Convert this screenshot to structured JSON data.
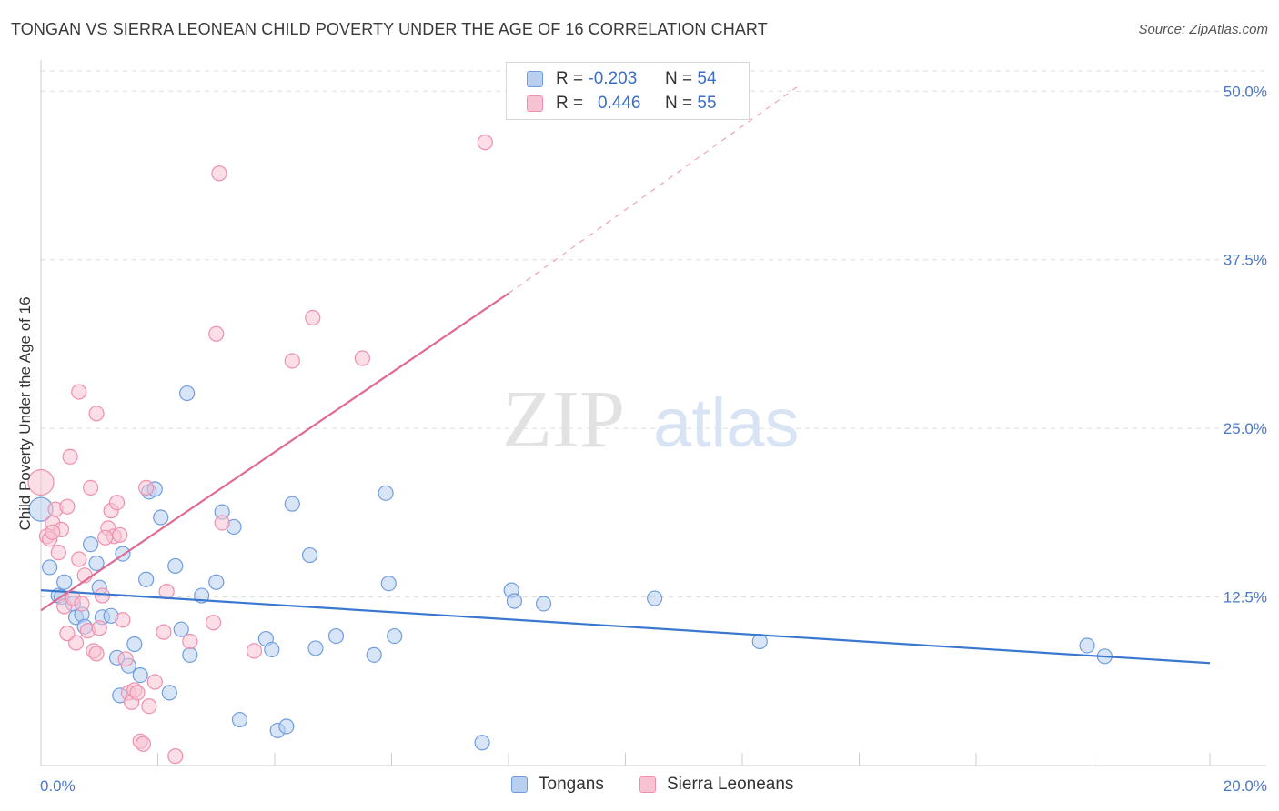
{
  "title": "TONGAN VS SIERRA LEONEAN CHILD POVERTY UNDER THE AGE OF 16 CORRELATION CHART",
  "source": "Source: ZipAtlas.com",
  "watermark": {
    "zip": "ZIP",
    "atlas": "atlas"
  },
  "legend": {
    "rows": [
      {
        "r_label": "R =",
        "r_value": "-0.203",
        "n_label": "N =",
        "n_value": "54"
      },
      {
        "r_label": "R =",
        "r_value": "0.446",
        "n_label": "N =",
        "n_value": "55"
      }
    ]
  },
  "bottom_legend": {
    "tongans": "Tongans",
    "sierra": "Sierra Leoneans"
  },
  "colors": {
    "tongan_fill": "#b8cff0",
    "tongan_stroke": "#6f9de0",
    "tongan_line": "#3a78d0",
    "sierra_fill": "#f7c3d2",
    "sierra_stroke": "#ef8fae",
    "sierra_line": "#e06a93",
    "grid": "#dddddd",
    "tick": "#4a78c8"
  },
  "chart_data": {
    "type": "scatter",
    "ylabel": "Child Poverty Under the Age of 16",
    "x_ticks": [
      "0.0%",
      "20.0%"
    ],
    "y_ticks": [
      "12.5%",
      "25.0%",
      "37.5%",
      "50.0%"
    ],
    "xlim": [
      0,
      20
    ],
    "ylim": [
      0,
      51.5
    ],
    "series": [
      {
        "name": "Tongans",
        "r": -0.203,
        "n": 54,
        "trend": {
          "x0": 0,
          "y0": 13.0,
          "x1": 20,
          "y1": 7.6
        },
        "points": [
          [
            0.0,
            19.0
          ],
          [
            0.15,
            14.7
          ],
          [
            0.3,
            12.6
          ],
          [
            0.35,
            12.5
          ],
          [
            0.4,
            13.6
          ],
          [
            0.55,
            12.0
          ],
          [
            0.6,
            11.0
          ],
          [
            0.7,
            11.2
          ],
          [
            0.75,
            10.3
          ],
          [
            0.85,
            16.4
          ],
          [
            0.95,
            15.0
          ],
          [
            1.0,
            13.2
          ],
          [
            1.05,
            11.0
          ],
          [
            1.2,
            11.1
          ],
          [
            1.3,
            8.0
          ],
          [
            1.4,
            15.7
          ],
          [
            1.5,
            7.4
          ],
          [
            1.6,
            9.0
          ],
          [
            1.7,
            6.7
          ],
          [
            1.8,
            13.8
          ],
          [
            1.85,
            20.3
          ],
          [
            1.95,
            20.5
          ],
          [
            2.05,
            18.4
          ],
          [
            2.2,
            5.4
          ],
          [
            2.3,
            14.8
          ],
          [
            2.4,
            10.1
          ],
          [
            2.5,
            27.6
          ],
          [
            2.55,
            8.2
          ],
          [
            2.75,
            12.6
          ],
          [
            3.0,
            13.6
          ],
          [
            3.1,
            18.8
          ],
          [
            3.3,
            17.7
          ],
          [
            3.4,
            3.4
          ],
          [
            3.85,
            9.4
          ],
          [
            3.95,
            8.6
          ],
          [
            4.05,
            2.6
          ],
          [
            4.2,
            2.9
          ],
          [
            4.3,
            19.4
          ],
          [
            4.6,
            15.6
          ],
          [
            4.7,
            8.7
          ],
          [
            5.05,
            9.6
          ],
          [
            5.7,
            8.2
          ],
          [
            5.9,
            20.2
          ],
          [
            5.95,
            13.5
          ],
          [
            6.05,
            9.6
          ],
          [
            7.55,
            1.7
          ],
          [
            8.05,
            13.0
          ],
          [
            8.1,
            12.2
          ],
          [
            8.6,
            12.0
          ],
          [
            10.5,
            12.4
          ],
          [
            12.3,
            9.2
          ],
          [
            17.9,
            8.9
          ],
          [
            18.2,
            8.1
          ],
          [
            1.35,
            5.2
          ]
        ]
      },
      {
        "name": "Sierra Leoneans",
        "r": 0.446,
        "n": 55,
        "trend": {
          "x0": 0,
          "y0": 11.5,
          "x1": 8.0,
          "y1": 35.0
        },
        "trend_ext": {
          "x0": 8.0,
          "y0": 35.0,
          "x1": 13.0,
          "y1": 50.5
        },
        "points": [
          [
            0.0,
            21.0
          ],
          [
            0.1,
            17.0
          ],
          [
            0.15,
            16.8
          ],
          [
            0.2,
            18.0
          ],
          [
            0.25,
            19.0
          ],
          [
            0.3,
            15.8
          ],
          [
            0.35,
            17.5
          ],
          [
            0.4,
            11.8
          ],
          [
            0.45,
            19.2
          ],
          [
            0.5,
            22.9
          ],
          [
            0.55,
            12.4
          ],
          [
            0.6,
            9.1
          ],
          [
            0.65,
            15.3
          ],
          [
            0.7,
            12.0
          ],
          [
            0.75,
            14.1
          ],
          [
            0.8,
            10.0
          ],
          [
            0.85,
            20.6
          ],
          [
            0.9,
            8.5
          ],
          [
            0.95,
            8.3
          ],
          [
            1.0,
            10.2
          ],
          [
            0.65,
            27.7
          ],
          [
            0.95,
            26.1
          ],
          [
            1.05,
            12.6
          ],
          [
            1.15,
            17.6
          ],
          [
            1.2,
            18.9
          ],
          [
            1.25,
            17.0
          ],
          [
            1.3,
            19.5
          ],
          [
            1.35,
            17.1
          ],
          [
            1.4,
            10.8
          ],
          [
            1.45,
            7.9
          ],
          [
            1.5,
            5.4
          ],
          [
            1.55,
            4.7
          ],
          [
            1.6,
            5.6
          ],
          [
            1.65,
            5.4
          ],
          [
            1.7,
            1.8
          ],
          [
            1.75,
            1.6
          ],
          [
            1.8,
            20.6
          ],
          [
            1.85,
            4.4
          ],
          [
            1.95,
            6.2
          ],
          [
            2.1,
            9.9
          ],
          [
            2.15,
            12.9
          ],
          [
            2.3,
            0.7
          ],
          [
            2.55,
            9.2
          ],
          [
            2.95,
            10.6
          ],
          [
            3.0,
            32.0
          ],
          [
            3.05,
            43.9
          ],
          [
            3.1,
            18.0
          ],
          [
            3.65,
            8.5
          ],
          [
            4.3,
            30.0
          ],
          [
            4.65,
            33.2
          ],
          [
            5.5,
            30.2
          ],
          [
            7.6,
            46.2
          ],
          [
            0.45,
            9.8
          ],
          [
            1.1,
            16.9
          ],
          [
            0.2,
            17.3
          ]
        ]
      }
    ]
  }
}
